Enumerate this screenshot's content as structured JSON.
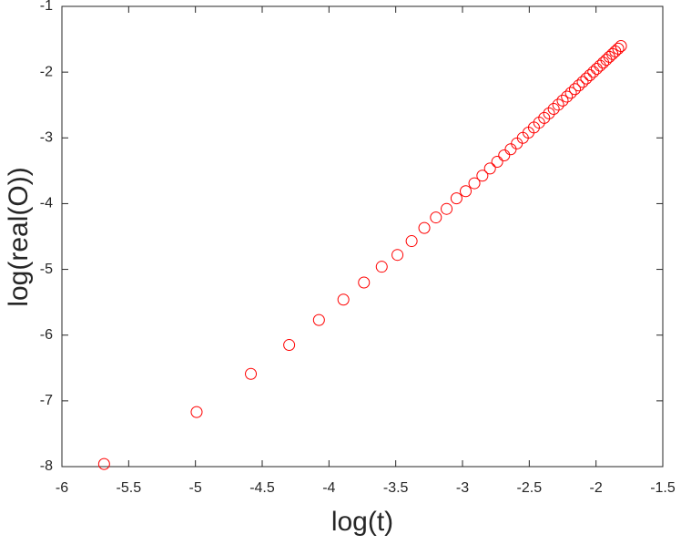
{
  "chart_data": {
    "type": "scatter",
    "xlabel": "log(t)",
    "ylabel": "log(real(O))",
    "color": "#ff0000",
    "x": [
      -5.684,
      -4.991,
      -4.585,
      -4.298,
      -4.075,
      -3.892,
      -3.738,
      -3.605,
      -3.487,
      -3.381,
      -3.286,
      -3.199,
      -3.119,
      -3.045,
      -2.976,
      -2.911,
      -2.851,
      -2.794,
      -2.74,
      -2.688,
      -2.639,
      -2.593,
      -2.548,
      -2.506,
      -2.465,
      -2.426,
      -2.388,
      -2.352,
      -2.317,
      -2.283,
      -2.25,
      -2.218,
      -2.188,
      -2.158,
      -2.129,
      -2.1,
      -2.073,
      -2.046,
      -2.02,
      -1.995,
      -1.97,
      -1.946,
      -1.923,
      -1.9,
      -1.877,
      -1.856,
      -1.834,
      -1.813
    ],
    "y": [
      -7.96,
      -7.17,
      -6.59,
      -6.15,
      -5.77,
      -5.46,
      -5.2,
      -4.96,
      -4.78,
      -4.57,
      -4.37,
      -4.21,
      -4.08,
      -3.92,
      -3.81,
      -3.69,
      -3.575,
      -3.466,
      -3.364,
      -3.266,
      -3.173,
      -3.085,
      -3.0,
      -2.92,
      -2.842,
      -2.768,
      -2.696,
      -2.627,
      -2.56,
      -2.496,
      -2.433,
      -2.373,
      -2.315,
      -2.258,
      -2.203,
      -2.149,
      -2.097,
      -2.047,
      -1.997,
      -1.949,
      -1.902,
      -1.856,
      -1.812,
      -1.768,
      -1.725,
      -1.684,
      -1.643,
      -1.603
    ],
    "xlim": [
      -6,
      -1.5
    ],
    "ylim": [
      -8,
      -1
    ],
    "xticks": [
      -6,
      -5.5,
      -5,
      -4.5,
      -4,
      -3.5,
      -3,
      -2.5,
      -2,
      -1.5
    ],
    "yticks": [
      -8,
      -7,
      -6,
      -5,
      -4,
      -3,
      -2,
      -1
    ]
  }
}
